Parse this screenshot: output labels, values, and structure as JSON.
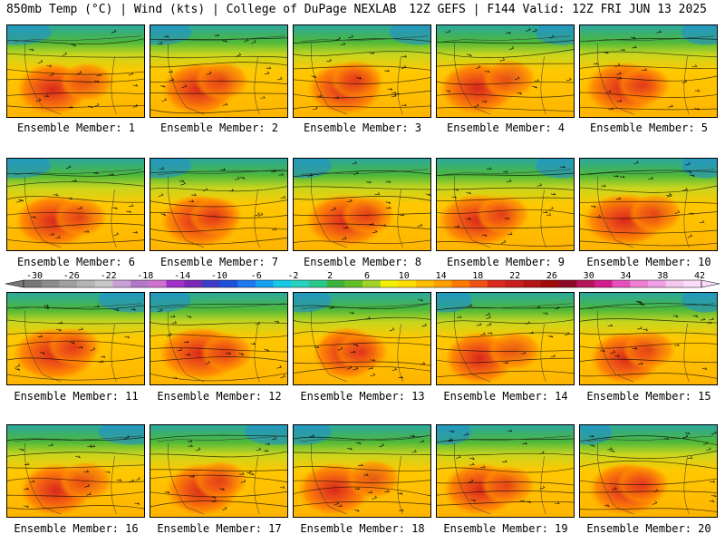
{
  "header": {
    "title_left": "850mb Temp (°C) | Wind (kts) | College of DuPage NEXLAB",
    "title_right": "12Z GEFS | F144 Valid: 12Z FRI JUN 13 2025"
  },
  "panels": [
    {
      "label": "Ensemble Member: 1"
    },
    {
      "label": "Ensemble Member: 2"
    },
    {
      "label": "Ensemble Member: 3"
    },
    {
      "label": "Ensemble Member: 4"
    },
    {
      "label": "Ensemble Member: 5"
    },
    {
      "label": "Ensemble Member: 6"
    },
    {
      "label": "Ensemble Member: 7"
    },
    {
      "label": "Ensemble Member: 8"
    },
    {
      "label": "Ensemble Member: 9"
    },
    {
      "label": "Ensemble Member: 10"
    },
    {
      "label": "Ensemble Member: 11"
    },
    {
      "label": "Ensemble Member: 12"
    },
    {
      "label": "Ensemble Member: 13"
    },
    {
      "label": "Ensemble Member: 14"
    },
    {
      "label": "Ensemble Member: 15"
    },
    {
      "label": "Ensemble Member: 16"
    },
    {
      "label": "Ensemble Member: 17"
    },
    {
      "label": "Ensemble Member: 18"
    },
    {
      "label": "Ensemble Member: 19"
    },
    {
      "label": "Ensemble Member: 20"
    }
  ],
  "colorbar": {
    "ticks": [
      "-30",
      "-26",
      "-22",
      "-18",
      "-14",
      "-10",
      "-6",
      "-2",
      "2",
      "6",
      "10",
      "14",
      "18",
      "22",
      "26",
      "30",
      "34",
      "38",
      "42"
    ],
    "colors": [
      "#787878",
      "#8c8c8c",
      "#a0a0a0",
      "#b4b4b4",
      "#c8c8c8",
      "#c8a0d8",
      "#b478c8",
      "#d270d2",
      "#a030c8",
      "#7828b4",
      "#3c3cc8",
      "#1e50dc",
      "#1e78f0",
      "#14a0f0",
      "#14c8e6",
      "#28d2be",
      "#28c88c",
      "#3cb43c",
      "#64be28",
      "#a0d228",
      "#f0f000",
      "#ffdc00",
      "#ffbe00",
      "#ffa000",
      "#ff7800",
      "#f05014",
      "#dc281e",
      "#c81e1e",
      "#b41414",
      "#a00a0a",
      "#8c0a28",
      "#b4145a",
      "#d21e8c",
      "#e650be",
      "#f080d2",
      "#f0a0e6",
      "#f5c8f0",
      "#fadcfa"
    ]
  }
}
